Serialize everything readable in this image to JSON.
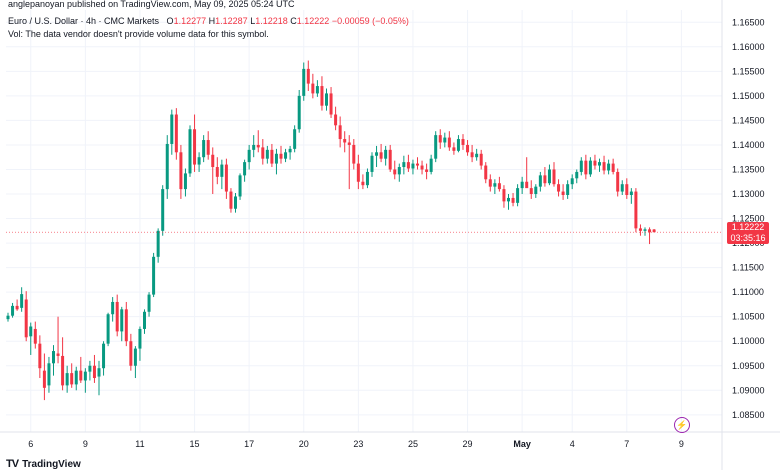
{
  "header": {
    "published": "anglepanoyan published on TradingView.com, May 09, 2025 05:24 UTC"
  },
  "legend": {
    "symbol": "Euro / U.S. Dollar · 4h · CMC Markets",
    "open_key": "O",
    "open": "1.12277",
    "high_key": "H",
    "high": "1.12287",
    "low_key": "L",
    "low": "1.12218",
    "close_key": "C",
    "close": "1.12222",
    "change": "−0.00059 (−0.05%)",
    "vol_note": "Vol: The data vendor doesn't provide volume data for this symbol."
  },
  "price_tag": {
    "price": "1.12222",
    "countdown": "03:35:16"
  },
  "brand": {
    "name": "TradingView",
    "logo": "TV"
  },
  "flash_icon": "lightning-icon",
  "colors": {
    "up": "#089981",
    "down": "#f23645",
    "grid": "#f0f3fa",
    "axis_text": "#131722"
  },
  "chart_data": {
    "type": "candlestick",
    "title": "Euro / U.S. Dollar · 4h · CMC Markets",
    "ylim": [
      1.0815,
      1.1675
    ],
    "y_ticks": [
      "1.16500",
      "1.16000",
      "1.15500",
      "1.15000",
      "1.14500",
      "1.14000",
      "1.13500",
      "1.13000",
      "1.12500",
      "1.12000",
      "1.11500",
      "1.11000",
      "1.10500",
      "1.10000",
      "1.09500",
      "1.09000",
      "1.08500"
    ],
    "x_ticks": [
      {
        "label": "6",
        "index": 5
      },
      {
        "label": "9",
        "index": 17
      },
      {
        "label": "11",
        "index": 29
      },
      {
        "label": "15",
        "index": 41
      },
      {
        "label": "17",
        "index": 53
      },
      {
        "label": "20",
        "index": 65
      },
      {
        "label": "23",
        "index": 77
      },
      {
        "label": "25",
        "index": 89
      },
      {
        "label": "29",
        "index": 101
      },
      {
        "label": "May",
        "index": 113
      },
      {
        "label": "4",
        "index": 124
      },
      {
        "label": "7",
        "index": 136
      },
      {
        "label": "9",
        "index": 148
      }
    ],
    "last_price": 1.12222,
    "candles": [
      {
        "o": 1.1045,
        "h": 1.1058,
        "l": 1.104,
        "c": 1.1052
      },
      {
        "o": 1.1052,
        "h": 1.1078,
        "l": 1.1048,
        "c": 1.1072
      },
      {
        "o": 1.1072,
        "h": 1.1085,
        "l": 1.1062,
        "c": 1.1065
      },
      {
        "o": 1.1068,
        "h": 1.111,
        "l": 1.106,
        "c": 1.1096
      },
      {
        "o": 1.1085,
        "h": 1.1102,
        "l": 1.1,
        "c": 1.1008
      },
      {
        "o": 1.101,
        "h": 1.1038,
        "l": 1.0972,
        "c": 1.103
      },
      {
        "o": 1.1025,
        "h": 1.104,
        "l": 1.0985,
        "c": 1.0995
      },
      {
        "o": 1.0995,
        "h": 1.1012,
        "l": 1.0925,
        "c": 1.0945
      },
      {
        "o": 1.094,
        "h": 1.0975,
        "l": 1.088,
        "c": 1.0905
      },
      {
        "o": 1.091,
        "h": 1.0968,
        "l": 1.0895,
        "c": 1.0955
      },
      {
        "o": 1.0955,
        "h": 1.0992,
        "l": 1.093,
        "c": 1.098
      },
      {
        "o": 1.0975,
        "h": 1.105,
        "l": 1.0955,
        "c": 1.097
      },
      {
        "o": 1.097,
        "h": 1.1008,
        "l": 1.09,
        "c": 1.091
      },
      {
        "o": 1.091,
        "h": 1.095,
        "l": 1.0895,
        "c": 1.0935
      },
      {
        "o": 1.0935,
        "h": 1.0955,
        "l": 1.0905,
        "c": 1.0912
      },
      {
        "o": 1.0912,
        "h": 1.0948,
        "l": 1.09,
        "c": 1.094
      },
      {
        "o": 1.094,
        "h": 1.0968,
        "l": 1.0915,
        "c": 1.092
      },
      {
        "o": 1.092,
        "h": 1.0945,
        "l": 1.0895,
        "c": 1.0938
      },
      {
        "o": 1.0938,
        "h": 1.096,
        "l": 1.092,
        "c": 1.095
      },
      {
        "o": 1.095,
        "h": 1.0972,
        "l": 1.0915,
        "c": 1.0925
      },
      {
        "o": 1.0928,
        "h": 1.096,
        "l": 1.089,
        "c": 1.0945
      },
      {
        "o": 1.0945,
        "h": 1.1,
        "l": 1.093,
        "c": 1.0995
      },
      {
        "o": 1.0995,
        "h": 1.1058,
        "l": 1.099,
        "c": 1.1055
      },
      {
        "o": 1.1055,
        "h": 1.109,
        "l": 1.104,
        "c": 1.108
      },
      {
        "o": 1.108,
        "h": 1.1095,
        "l": 1.101,
        "c": 1.102
      },
      {
        "o": 1.102,
        "h": 1.107,
        "l": 1.1,
        "c": 1.1065
      },
      {
        "o": 1.1065,
        "h": 1.108,
        "l": 1.099,
        "c": 1.1
      },
      {
        "o": 1.1,
        "h": 1.1015,
        "l": 1.094,
        "c": 1.095
      },
      {
        "o": 1.095,
        "h": 1.099,
        "l": 1.0925,
        "c": 1.0985
      },
      {
        "o": 1.0985,
        "h": 1.103,
        "l": 1.096,
        "c": 1.1025
      },
      {
        "o": 1.1025,
        "h": 1.1065,
        "l": 1.1015,
        "c": 1.106
      },
      {
        "o": 1.106,
        "h": 1.11,
        "l": 1.105,
        "c": 1.1095
      },
      {
        "o": 1.1095,
        "h": 1.118,
        "l": 1.109,
        "c": 1.1172
      },
      {
        "o": 1.1172,
        "h": 1.123,
        "l": 1.116,
        "c": 1.1225
      },
      {
        "o": 1.1225,
        "h": 1.1318,
        "l": 1.1215,
        "c": 1.131
      },
      {
        "o": 1.131,
        "h": 1.142,
        "l": 1.129,
        "c": 1.1402
      },
      {
        "o": 1.1402,
        "h": 1.1472,
        "l": 1.138,
        "c": 1.1462
      },
      {
        "o": 1.1462,
        "h": 1.1475,
        "l": 1.137,
        "c": 1.1385
      },
      {
        "o": 1.1385,
        "h": 1.14,
        "l": 1.129,
        "c": 1.131
      },
      {
        "o": 1.131,
        "h": 1.1352,
        "l": 1.1295,
        "c": 1.1342
      },
      {
        "o": 1.1342,
        "h": 1.144,
        "l": 1.1335,
        "c": 1.1432
      },
      {
        "o": 1.1432,
        "h": 1.1462,
        "l": 1.1345,
        "c": 1.136
      },
      {
        "o": 1.136,
        "h": 1.1385,
        "l": 1.1345,
        "c": 1.1375
      },
      {
        "o": 1.1375,
        "h": 1.142,
        "l": 1.1365,
        "c": 1.141
      },
      {
        "o": 1.141,
        "h": 1.1428,
        "l": 1.137,
        "c": 1.138
      },
      {
        "o": 1.138,
        "h": 1.1395,
        "l": 1.13,
        "c": 1.1355
      },
      {
        "o": 1.1355,
        "h": 1.1375,
        "l": 1.132,
        "c": 1.1335
      },
      {
        "o": 1.1335,
        "h": 1.137,
        "l": 1.131,
        "c": 1.136
      },
      {
        "o": 1.136,
        "h": 1.1372,
        "l": 1.129,
        "c": 1.1305
      },
      {
        "o": 1.1305,
        "h": 1.1312,
        "l": 1.1262,
        "c": 1.127
      },
      {
        "o": 1.127,
        "h": 1.1302,
        "l": 1.1262,
        "c": 1.1295
      },
      {
        "o": 1.1295,
        "h": 1.1342,
        "l": 1.1288,
        "c": 1.1338
      },
      {
        "o": 1.1338,
        "h": 1.137,
        "l": 1.1325,
        "c": 1.1365
      },
      {
        "o": 1.1365,
        "h": 1.14,
        "l": 1.135,
        "c": 1.139
      },
      {
        "o": 1.139,
        "h": 1.142,
        "l": 1.1375,
        "c": 1.14
      },
      {
        "o": 1.14,
        "h": 1.143,
        "l": 1.1385,
        "c": 1.1395
      },
      {
        "o": 1.1395,
        "h": 1.1412,
        "l": 1.136,
        "c": 1.1372
      },
      {
        "o": 1.1372,
        "h": 1.1398,
        "l": 1.1362,
        "c": 1.139
      },
      {
        "o": 1.139,
        "h": 1.1402,
        "l": 1.1355,
        "c": 1.1362
      },
      {
        "o": 1.1362,
        "h": 1.1392,
        "l": 1.134,
        "c": 1.1382
      },
      {
        "o": 1.1382,
        "h": 1.1398,
        "l": 1.1362,
        "c": 1.1372
      },
      {
        "o": 1.1372,
        "h": 1.1392,
        "l": 1.1365,
        "c": 1.1385
      },
      {
        "o": 1.1385,
        "h": 1.1398,
        "l": 1.137,
        "c": 1.1392
      },
      {
        "o": 1.1392,
        "h": 1.144,
        "l": 1.1385,
        "c": 1.1432
      },
      {
        "o": 1.1432,
        "h": 1.1512,
        "l": 1.1425,
        "c": 1.15
      },
      {
        "o": 1.15,
        "h": 1.1568,
        "l": 1.149,
        "c": 1.1555
      },
      {
        "o": 1.1555,
        "h": 1.1572,
        "l": 1.151,
        "c": 1.1525
      },
      {
        "o": 1.1525,
        "h": 1.1545,
        "l": 1.1495,
        "c": 1.1505
      },
      {
        "o": 1.1505,
        "h": 1.1532,
        "l": 1.1498,
        "c": 1.152
      },
      {
        "o": 1.152,
        "h": 1.154,
        "l": 1.147,
        "c": 1.148
      },
      {
        "o": 1.148,
        "h": 1.1515,
        "l": 1.147,
        "c": 1.1505
      },
      {
        "o": 1.1505,
        "h": 1.1518,
        "l": 1.1455,
        "c": 1.1462
      },
      {
        "o": 1.1462,
        "h": 1.1478,
        "l": 1.143,
        "c": 1.144
      },
      {
        "o": 1.144,
        "h": 1.1458,
        "l": 1.1395,
        "c": 1.1412
      },
      {
        "o": 1.1412,
        "h": 1.1428,
        "l": 1.1385,
        "c": 1.1405
      },
      {
        "o": 1.1405,
        "h": 1.142,
        "l": 1.131,
        "c": 1.14
      },
      {
        "o": 1.14,
        "h": 1.1412,
        "l": 1.135,
        "c": 1.1362
      },
      {
        "o": 1.1362,
        "h": 1.138,
        "l": 1.131,
        "c": 1.1325
      },
      {
        "o": 1.1325,
        "h": 1.134,
        "l": 1.131,
        "c": 1.1318
      },
      {
        "o": 1.1318,
        "h": 1.1352,
        "l": 1.1312,
        "c": 1.1345
      },
      {
        "o": 1.1345,
        "h": 1.1385,
        "l": 1.1335,
        "c": 1.1378
      },
      {
        "o": 1.1378,
        "h": 1.1398,
        "l": 1.1355,
        "c": 1.1385
      },
      {
        "o": 1.1385,
        "h": 1.1402,
        "l": 1.1365,
        "c": 1.1372
      },
      {
        "o": 1.1372,
        "h": 1.1398,
        "l": 1.1358,
        "c": 1.139
      },
      {
        "o": 1.139,
        "h": 1.14,
        "l": 1.1345,
        "c": 1.135
      },
      {
        "o": 1.135,
        "h": 1.1368,
        "l": 1.133,
        "c": 1.134
      },
      {
        "o": 1.134,
        "h": 1.1362,
        "l": 1.1325,
        "c": 1.1355
      },
      {
        "o": 1.1355,
        "h": 1.1378,
        "l": 1.134,
        "c": 1.1365
      },
      {
        "o": 1.1365,
        "h": 1.138,
        "l": 1.1345,
        "c": 1.1352
      },
      {
        "o": 1.1352,
        "h": 1.137,
        "l": 1.134,
        "c": 1.1362
      },
      {
        "o": 1.1362,
        "h": 1.1375,
        "l": 1.135,
        "c": 1.1358
      },
      {
        "o": 1.1358,
        "h": 1.1368,
        "l": 1.134,
        "c": 1.135
      },
      {
        "o": 1.135,
        "h": 1.1362,
        "l": 1.133,
        "c": 1.1345
      },
      {
        "o": 1.1345,
        "h": 1.138,
        "l": 1.134,
        "c": 1.1372
      },
      {
        "o": 1.1372,
        "h": 1.1428,
        "l": 1.1365,
        "c": 1.142
      },
      {
        "o": 1.142,
        "h": 1.1432,
        "l": 1.1392,
        "c": 1.1405
      },
      {
        "o": 1.1405,
        "h": 1.1425,
        "l": 1.1395,
        "c": 1.1415
      },
      {
        "o": 1.1415,
        "h": 1.1428,
        "l": 1.1388,
        "c": 1.1395
      },
      {
        "o": 1.1395,
        "h": 1.1405,
        "l": 1.138,
        "c": 1.1388
      },
      {
        "o": 1.1388,
        "h": 1.142,
        "l": 1.1385,
        "c": 1.1412
      },
      {
        "o": 1.1412,
        "h": 1.1422,
        "l": 1.139,
        "c": 1.14
      },
      {
        "o": 1.14,
        "h": 1.141,
        "l": 1.1378,
        "c": 1.1385
      },
      {
        "o": 1.1385,
        "h": 1.14,
        "l": 1.1365,
        "c": 1.1375
      },
      {
        "o": 1.1375,
        "h": 1.1392,
        "l": 1.1368,
        "c": 1.1382
      },
      {
        "o": 1.1382,
        "h": 1.139,
        "l": 1.135,
        "c": 1.1358
      },
      {
        "o": 1.1358,
        "h": 1.1365,
        "l": 1.1322,
        "c": 1.133
      },
      {
        "o": 1.133,
        "h": 1.134,
        "l": 1.1305,
        "c": 1.1315
      },
      {
        "o": 1.1315,
        "h": 1.133,
        "l": 1.13,
        "c": 1.1322
      },
      {
        "o": 1.1322,
        "h": 1.1335,
        "l": 1.1305,
        "c": 1.131
      },
      {
        "o": 1.131,
        "h": 1.1318,
        "l": 1.1272,
        "c": 1.1285
      },
      {
        "o": 1.1285,
        "h": 1.13,
        "l": 1.1268,
        "c": 1.1292
      },
      {
        "o": 1.1292,
        "h": 1.1302,
        "l": 1.1275,
        "c": 1.1282
      },
      {
        "o": 1.1282,
        "h": 1.132,
        "l": 1.1275,
        "c": 1.1312
      },
      {
        "o": 1.1312,
        "h": 1.1335,
        "l": 1.13,
        "c": 1.1325
      },
      {
        "o": 1.1325,
        "h": 1.1375,
        "l": 1.1318,
        "c": 1.1312
      },
      {
        "o": 1.1312,
        "h": 1.1328,
        "l": 1.129,
        "c": 1.13
      },
      {
        "o": 1.13,
        "h": 1.132,
        "l": 1.1292,
        "c": 1.1315
      },
      {
        "o": 1.1315,
        "h": 1.1345,
        "l": 1.1305,
        "c": 1.1338
      },
      {
        "o": 1.1338,
        "h": 1.1355,
        "l": 1.1315,
        "c": 1.1322
      },
      {
        "o": 1.1322,
        "h": 1.136,
        "l": 1.1318,
        "c": 1.135
      },
      {
        "o": 1.135,
        "h": 1.1365,
        "l": 1.1315,
        "c": 1.132
      },
      {
        "o": 1.132,
        "h": 1.133,
        "l": 1.1295,
        "c": 1.1305
      },
      {
        "o": 1.1305,
        "h": 1.132,
        "l": 1.1288,
        "c": 1.1298
      },
      {
        "o": 1.1298,
        "h": 1.1328,
        "l": 1.129,
        "c": 1.132
      },
      {
        "o": 1.132,
        "h": 1.134,
        "l": 1.131,
        "c": 1.1332
      },
      {
        "o": 1.1332,
        "h": 1.135,
        "l": 1.1322,
        "c": 1.1345
      },
      {
        "o": 1.1345,
        "h": 1.1375,
        "l": 1.1338,
        "c": 1.1368
      },
      {
        "o": 1.1368,
        "h": 1.138,
        "l": 1.133,
        "c": 1.134
      },
      {
        "o": 1.134,
        "h": 1.1375,
        "l": 1.1335,
        "c": 1.1368
      },
      {
        "o": 1.1368,
        "h": 1.138,
        "l": 1.135,
        "c": 1.1358
      },
      {
        "o": 1.1358,
        "h": 1.1372,
        "l": 1.1345,
        "c": 1.1365
      },
      {
        "o": 1.1365,
        "h": 1.1378,
        "l": 1.134,
        "c": 1.1348
      },
      {
        "o": 1.1348,
        "h": 1.137,
        "l": 1.134,
        "c": 1.1362
      },
      {
        "o": 1.1362,
        "h": 1.1372,
        "l": 1.134,
        "c": 1.1345
      },
      {
        "o": 1.1345,
        "h": 1.1352,
        "l": 1.1295,
        "c": 1.1305
      },
      {
        "o": 1.1305,
        "h": 1.1328,
        "l": 1.1298,
        "c": 1.132
      },
      {
        "o": 1.132,
        "h": 1.1332,
        "l": 1.129,
        "c": 1.1298
      },
      {
        "o": 1.1298,
        "h": 1.1312,
        "l": 1.128,
        "c": 1.1305
      },
      {
        "o": 1.1305,
        "h": 1.1312,
        "l": 1.1222,
        "c": 1.123
      },
      {
        "o": 1.123,
        "h": 1.1238,
        "l": 1.1215,
        "c": 1.1225
      },
      {
        "o": 1.1225,
        "h": 1.1232,
        "l": 1.1215,
        "c": 1.1228
      },
      {
        "o": 1.1228,
        "h": 1.1232,
        "l": 1.1198,
        "c": 1.1222
      },
      {
        "o": 1.12277,
        "h": 1.12287,
        "l": 1.12218,
        "c": 1.12222
      }
    ]
  }
}
